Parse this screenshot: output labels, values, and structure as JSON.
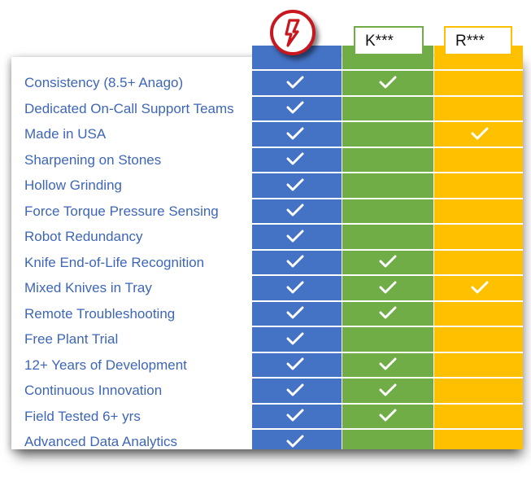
{
  "colors": {
    "ours": "#4472C4",
    "competitor_k": "#70AD47",
    "competitor_r": "#FFC000",
    "label_text": "#3E66B8",
    "logo_red": "#C8171E"
  },
  "header": {
    "logo_icon": "company-logo-icon",
    "competitor_k_label": "K***",
    "competitor_r_label": "R***"
  },
  "rows": [
    {
      "label": "Consistency (8.5+ Anago)",
      "ours": true,
      "k": true,
      "r": false
    },
    {
      "label": "Dedicated On-Call Support Teams",
      "ours": true,
      "k": false,
      "r": false
    },
    {
      "label": "Made in USA",
      "ours": true,
      "k": false,
      "r": true
    },
    {
      "label": "Sharpening on Stones",
      "ours": true,
      "k": false,
      "r": false
    },
    {
      "label": "Hollow Grinding",
      "ours": true,
      "k": false,
      "r": false
    },
    {
      "label": "Force Torque Pressure Sensing",
      "ours": true,
      "k": false,
      "r": false
    },
    {
      "label": "Robot Redundancy",
      "ours": true,
      "k": false,
      "r": false
    },
    {
      "label": "Knife End-of-Life Recognition",
      "ours": true,
      "k": true,
      "r": false
    },
    {
      "label": "Mixed Knives in Tray",
      "ours": true,
      "k": true,
      "r": true
    },
    {
      "label": "Remote Troubleshooting",
      "ours": true,
      "k": true,
      "r": false
    },
    {
      "label": "Free Plant Trial",
      "ours": true,
      "k": false,
      "r": false
    },
    {
      "label": "12+ Years of Development",
      "ours": true,
      "k": true,
      "r": false
    },
    {
      "label": "Continuous Innovation",
      "ours": true,
      "k": true,
      "r": false
    },
    {
      "label": "Field Tested 6+ yrs",
      "ours": true,
      "k": true,
      "r": false
    },
    {
      "label": "Advanced Data Analytics",
      "ours": true,
      "k": false,
      "r": false
    }
  ]
}
